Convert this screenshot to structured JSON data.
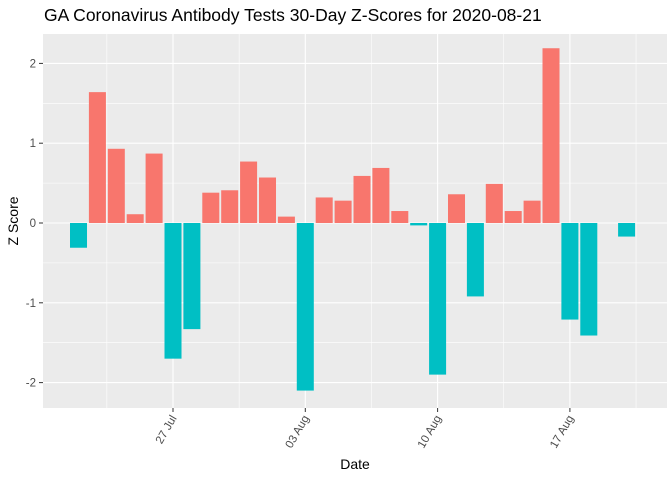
{
  "chart_data": {
    "type": "bar",
    "title": "GA Coronavirus Antibody Tests 30-Day Z-Scores for 2020-08-21",
    "xlabel": "Date",
    "ylabel": "Z Score",
    "ylim": [
      -2.3,
      2.3
    ],
    "yticks": [
      -2,
      -1,
      0,
      1,
      2
    ],
    "xticks": [
      {
        "label": "27 Jul",
        "date": "2020-07-27"
      },
      {
        "label": "03 Aug",
        "date": "2020-08-03"
      },
      {
        "label": "10 Aug",
        "date": "2020-08-10"
      },
      {
        "label": "17 Aug",
        "date": "2020-08-17"
      }
    ],
    "grid": true,
    "legend": "none",
    "colors": {
      "positive": "#F8766D",
      "negative": "#00BFC4",
      "panel": "#EBEBEB",
      "grid": "#FFFFFF"
    },
    "categories": [
      "2020-07-22",
      "2020-07-23",
      "2020-07-24",
      "2020-07-25",
      "2020-07-26",
      "2020-07-27",
      "2020-07-28",
      "2020-07-29",
      "2020-07-30",
      "2020-07-31",
      "2020-08-01",
      "2020-08-02",
      "2020-08-03",
      "2020-08-04",
      "2020-08-05",
      "2020-08-06",
      "2020-08-07",
      "2020-08-08",
      "2020-08-09",
      "2020-08-10",
      "2020-08-11",
      "2020-08-12",
      "2020-08-13",
      "2020-08-14",
      "2020-08-15",
      "2020-08-16",
      "2020-08-17",
      "2020-08-18",
      "2020-08-19",
      "2020-08-20",
      "2020-08-21"
    ],
    "values": [
      -0.31,
      1.64,
      0.93,
      0.11,
      0.87,
      -1.7,
      -1.33,
      0.38,
      0.41,
      0.77,
      0.57,
      0.08,
      -2.1,
      0.32,
      0.28,
      0.59,
      0.69,
      0.15,
      -0.03,
      -1.9,
      0.36,
      -0.92,
      0.49,
      0.15,
      0.28,
      2.19,
      -1.21,
      -1.41,
      null,
      -0.17,
      null
    ]
  }
}
